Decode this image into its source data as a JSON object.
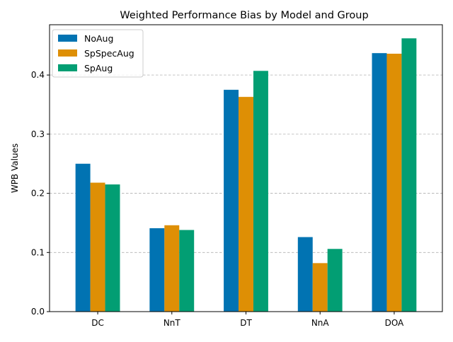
{
  "chart_data": {
    "type": "bar",
    "title": "Weighted Performance Bias by Model and Group",
    "xlabel": "",
    "ylabel": "WPB Values",
    "categories": [
      "DC",
      "NnT",
      "DT",
      "NnA",
      "DOA"
    ],
    "series": [
      {
        "name": "NoAug",
        "color": "#0173b2",
        "values": [
          0.25,
          0.141,
          0.375,
          0.126,
          0.437
        ]
      },
      {
        "name": "SpSpecAug",
        "color": "#de8f05",
        "values": [
          0.218,
          0.146,
          0.363,
          0.082,
          0.436
        ]
      },
      {
        "name": "SpAug",
        "color": "#029e73",
        "values": [
          0.215,
          0.138,
          0.407,
          0.106,
          0.462
        ]
      }
    ],
    "ylim": [
      0,
      0.485
    ],
    "yticks": [
      "0.0",
      "0.1",
      "0.2",
      "0.3",
      "0.4"
    ],
    "grid": "y-dashed",
    "legend": "top-left"
  }
}
